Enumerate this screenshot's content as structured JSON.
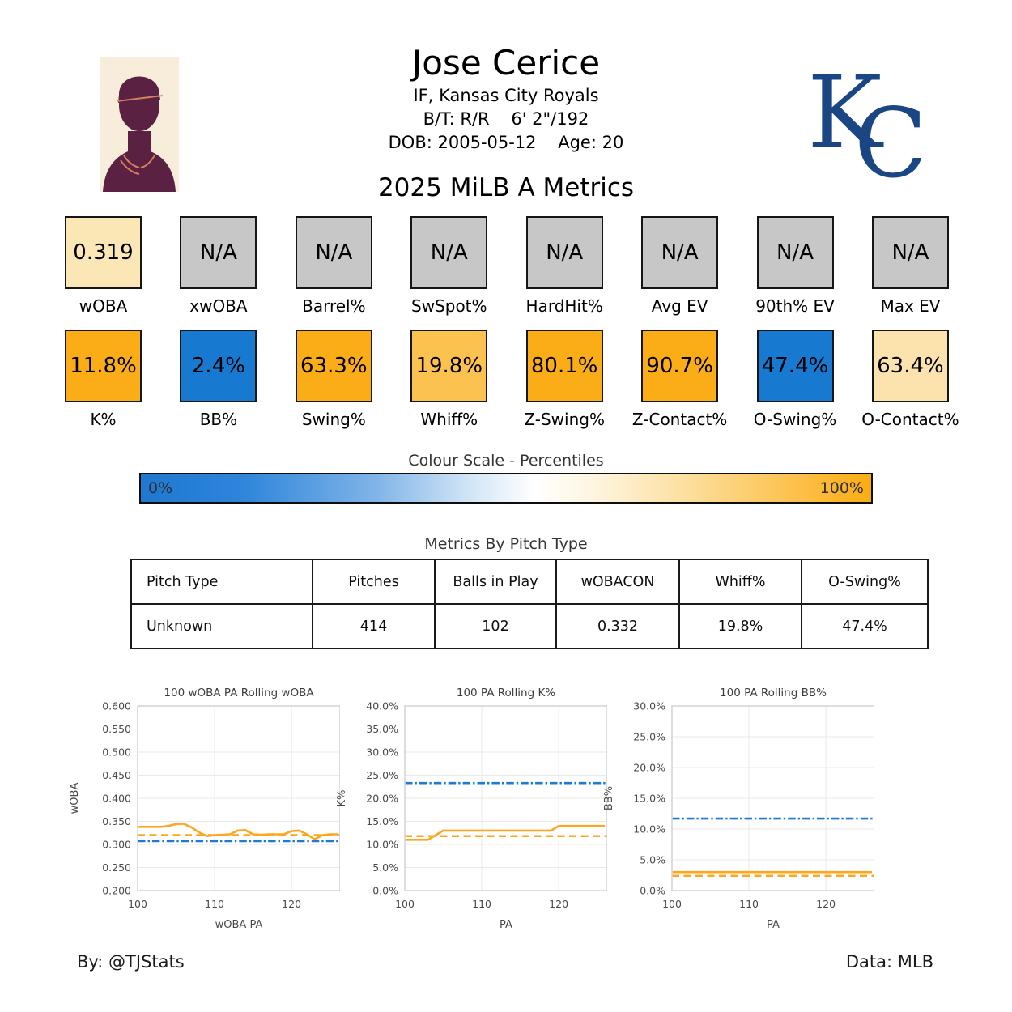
{
  "header": {
    "name": "Jose Cerice",
    "position_team": "IF, Kansas City Royals",
    "bats_throws_size": "B/T: R/R    6' 2\"/192",
    "dob_age": "DOB: 2005-05-12    Age: 20",
    "season_title": "2025 MiLB A Metrics",
    "team_logo_letters": {
      "k": "K",
      "c": "C"
    },
    "team_color": "#1A4784"
  },
  "metrics_row1": [
    {
      "label": "wOBA",
      "value": "0.319",
      "color": "#FBE6B6"
    },
    {
      "label": "xwOBA",
      "value": "N/A",
      "color": "#C7C7C7"
    },
    {
      "label": "Barrel%",
      "value": "N/A",
      "color": "#C7C7C7"
    },
    {
      "label": "SwSpot%",
      "value": "N/A",
      "color": "#C7C7C7"
    },
    {
      "label": "HardHit%",
      "value": "N/A",
      "color": "#C7C7C7"
    },
    {
      "label": "Avg EV",
      "value": "N/A",
      "color": "#C7C7C7"
    },
    {
      "label": "90th% EV",
      "value": "N/A",
      "color": "#C7C7C7"
    },
    {
      "label": "Max EV",
      "value": "N/A",
      "color": "#C7C7C7"
    }
  ],
  "metrics_row2": [
    {
      "label": "K%",
      "value": "11.8%",
      "color": "#FBAD18"
    },
    {
      "label": "BB%",
      "value": "2.4%",
      "color": "#1779D0"
    },
    {
      "label": "Swing%",
      "value": "63.3%",
      "color": "#FBAD18"
    },
    {
      "label": "Whiff%",
      "value": "19.8%",
      "color": "#FCC24F"
    },
    {
      "label": "Z-Swing%",
      "value": "80.1%",
      "color": "#FBAD18"
    },
    {
      "label": "Z-Contact%",
      "value": "90.7%",
      "color": "#FBAD18"
    },
    {
      "label": "O-Swing%",
      "value": "47.4%",
      "color": "#1779D0"
    },
    {
      "label": "O-Contact%",
      "value": "63.4%",
      "color": "#FCE3AD"
    }
  ],
  "colour_scale": {
    "title": "Colour Scale - Percentiles",
    "left_label": "0%",
    "right_label": "100%",
    "low_color": "#1F77D0",
    "mid_color": "#FFFFFF",
    "high_color": "#FBAC12"
  },
  "pitch_table": {
    "title": "Metrics By Pitch Type",
    "columns": [
      "Pitch Type",
      "Pitches",
      "Balls in Play",
      "wOBACON",
      "Whiff%",
      "O-Swing%"
    ],
    "rows": [
      [
        "Unknown",
        "414",
        "102",
        "0.332",
        "19.8%",
        "47.4%"
      ]
    ]
  },
  "chart_data": [
    {
      "type": "line",
      "title": "100 wOBA PA Rolling wOBA",
      "xlabel": "wOBA PA",
      "ylabel": "wOBA",
      "xlim": [
        100,
        126.3
      ],
      "ylim": [
        0.2,
        0.6
      ],
      "xticks": [
        100,
        110,
        120
      ],
      "ytick_vals": [
        0.2,
        0.25,
        0.3,
        0.35,
        0.4,
        0.45,
        0.5,
        0.55,
        0.6
      ],
      "ytick_labels": [
        "0.200",
        "0.250",
        "0.300",
        "0.350",
        "0.400",
        "0.450",
        "0.500",
        "0.550",
        "0.600"
      ],
      "grid": true,
      "x": [
        100,
        101,
        102,
        103,
        104,
        105,
        106,
        107,
        108,
        109,
        110,
        111,
        112,
        113,
        114,
        115,
        116,
        117,
        118,
        119,
        120,
        121,
        122,
        123,
        124,
        125,
        126
      ],
      "series": [
        {
          "name": "rolling wOBA",
          "style": "solid",
          "color": "#FCA71F",
          "values": [
            0.338,
            0.338,
            0.338,
            0.338,
            0.34,
            0.344,
            0.345,
            0.337,
            0.326,
            0.318,
            0.32,
            0.321,
            0.322,
            0.33,
            0.331,
            0.322,
            0.321,
            0.322,
            0.322,
            0.322,
            0.329,
            0.33,
            0.322,
            0.311,
            0.32,
            0.322,
            0.322
          ]
        }
      ],
      "hlines": [
        {
          "name": "player average wOBA",
          "y": 0.32,
          "style": "dashed",
          "color": "#FCA71F"
        },
        {
          "name": "league average wOBA",
          "y": 0.307,
          "style": "dashdot",
          "color": "#1E7BD3"
        }
      ]
    },
    {
      "type": "line",
      "title": "100 PA Rolling K%",
      "xlabel": "PA",
      "ylabel": "K%",
      "xlim": [
        100,
        126.3
      ],
      "ylim": [
        0,
        0.4
      ],
      "xticks": [
        100,
        110,
        120
      ],
      "ytick_vals": [
        0,
        0.05,
        0.1,
        0.15,
        0.2,
        0.25,
        0.3,
        0.35,
        0.4
      ],
      "ytick_labels": [
        "0.0%",
        "5.0%",
        "10.0%",
        "15.0%",
        "20.0%",
        "25.0%",
        "30.0%",
        "35.0%",
        "40.0%"
      ],
      "grid": true,
      "x": [
        100,
        101,
        102,
        103,
        104,
        105,
        106,
        107,
        108,
        109,
        110,
        111,
        112,
        113,
        114,
        115,
        116,
        117,
        118,
        119,
        120,
        121,
        122,
        123,
        124,
        125,
        126
      ],
      "series": [
        {
          "name": "rolling K%",
          "style": "solid",
          "color": "#FCA71F",
          "values": [
            0.11,
            0.11,
            0.11,
            0.11,
            0.12,
            0.13,
            0.13,
            0.13,
            0.13,
            0.13,
            0.13,
            0.13,
            0.13,
            0.13,
            0.13,
            0.13,
            0.13,
            0.13,
            0.13,
            0.13,
            0.14,
            0.14,
            0.14,
            0.14,
            0.14,
            0.14,
            0.14
          ]
        }
      ],
      "hlines": [
        {
          "name": "player average K%",
          "y": 0.118,
          "style": "dashed",
          "color": "#FCA71F"
        },
        {
          "name": "league average K%",
          "y": 0.233,
          "style": "dashdot",
          "color": "#1E7BD3"
        }
      ]
    },
    {
      "type": "line",
      "title": "100 PA Rolling BB%",
      "xlabel": "PA",
      "ylabel": "BB%",
      "xlim": [
        100,
        126.3
      ],
      "ylim": [
        0,
        0.3
      ],
      "xticks": [
        100,
        110,
        120
      ],
      "ytick_vals": [
        0,
        0.05,
        0.1,
        0.15,
        0.2,
        0.25,
        0.3
      ],
      "ytick_labels": [
        "0.0%",
        "5.0%",
        "10.0%",
        "15.0%",
        "20.0%",
        "25.0%",
        "30.0%"
      ],
      "grid": true,
      "x": [
        100,
        101,
        102,
        103,
        104,
        105,
        106,
        107,
        108,
        109,
        110,
        111,
        112,
        113,
        114,
        115,
        116,
        117,
        118,
        119,
        120,
        121,
        122,
        123,
        124,
        125,
        126
      ],
      "series": [
        {
          "name": "rolling BB%",
          "style": "solid",
          "color": "#FCA71F",
          "values": [
            0.03,
            0.03,
            0.03,
            0.03,
            0.03,
            0.03,
            0.03,
            0.03,
            0.03,
            0.03,
            0.03,
            0.03,
            0.03,
            0.03,
            0.03,
            0.03,
            0.03,
            0.03,
            0.03,
            0.03,
            0.03,
            0.03,
            0.03,
            0.03,
            0.03,
            0.03,
            0.03
          ]
        }
      ],
      "hlines": [
        {
          "name": "player average BB%",
          "y": 0.024,
          "style": "dashed",
          "color": "#FCA71F"
        },
        {
          "name": "league average BB%",
          "y": 0.117,
          "style": "dashdot",
          "color": "#1E7BD3"
        }
      ]
    }
  ],
  "footer": {
    "credit": "By: @TJStats",
    "source": "Data: MLB"
  }
}
